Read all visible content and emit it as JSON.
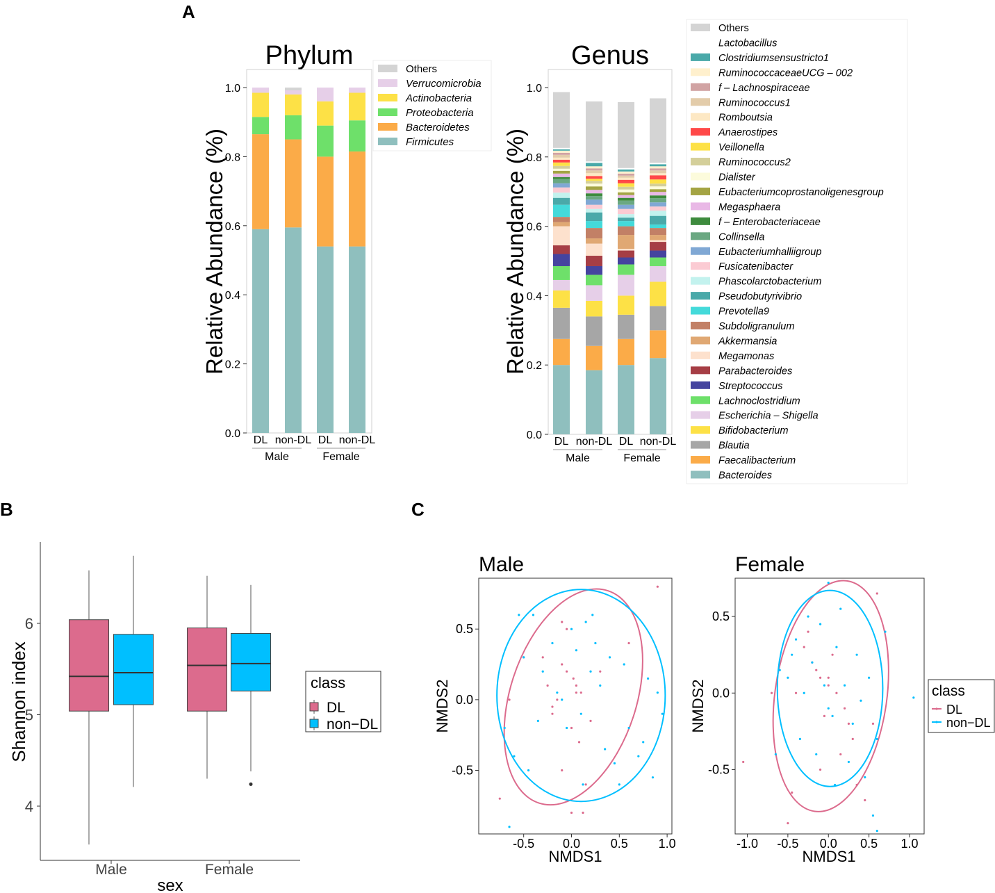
{
  "panel_labels": {
    "a": "A",
    "b": "B",
    "c": "C"
  },
  "colors": {
    "Others": "#d4d4d4",
    "Firmicutes": "#8fbfbe",
    "Bacteroidetes": "#fbab48",
    "Proteobacteria": "#6ee06a",
    "Actinobacteria": "#fde146",
    "Verrucomicrobia": "#e6cfe8",
    "DL": "#dc6b8d",
    "nonDL": "#00bfff"
  },
  "chart_data": [
    {
      "id": "phylum",
      "type": "bar",
      "stacked": true,
      "title": "Phylum",
      "ylabel": "Relative Abundance (%)",
      "ylim": [
        0,
        1.0
      ],
      "yticks": [
        "0.0",
        "0.2",
        "0.4",
        "0.6",
        "0.8",
        "1.0"
      ],
      "categories": [
        "DL",
        "non-DL",
        "DL",
        "non-DL"
      ],
      "groups": [
        "Male",
        "Female"
      ],
      "series": [
        {
          "name": "Firmicutes",
          "values": [
            0.59,
            0.595,
            0.54,
            0.54
          ]
        },
        {
          "name": "Bacteroidetes",
          "values": [
            0.275,
            0.255,
            0.26,
            0.275
          ]
        },
        {
          "name": "Proteobacteria",
          "values": [
            0.05,
            0.07,
            0.09,
            0.09
          ]
        },
        {
          "name": "Actinobacteria",
          "values": [
            0.07,
            0.06,
            0.07,
            0.08
          ]
        },
        {
          "name": "Verrucomicrobia",
          "values": [
            0.015,
            0.012,
            0.04,
            0.015
          ]
        },
        {
          "name": "Others",
          "values": [
            0.0,
            0.008,
            0.0,
            0.0
          ]
        }
      ],
      "legend": [
        "Others",
        "Verrucomicrobia",
        "Actinobacteria",
        "Proteobacteria",
        "Bacteroidetes",
        "Firmicutes"
      ]
    },
    {
      "id": "genus",
      "type": "bar",
      "stacked": true,
      "title": "Genus",
      "ylabel": "Relative Abundance (%)",
      "ylim": [
        0,
        1.0
      ],
      "yticks": [
        "0.0",
        "0.2",
        "0.4",
        "0.6",
        "0.8",
        "1.0"
      ],
      "categories": [
        "DL",
        "non-DL",
        "DL",
        "non-DL"
      ],
      "groups": [
        "Male",
        "Female"
      ],
      "series": [
        {
          "name": "Bacteroides",
          "values": [
            0.2,
            0.185,
            0.2,
            0.22
          ],
          "color": "#8fbfbe"
        },
        {
          "name": "Faecalibacterium",
          "values": [
            0.075,
            0.07,
            0.075,
            0.08
          ],
          "color": "#fbab48"
        },
        {
          "name": "Blautia",
          "values": [
            0.09,
            0.085,
            0.07,
            0.07
          ],
          "color": "#a6a6a6"
        },
        {
          "name": "Bifidobacterium",
          "values": [
            0.05,
            0.045,
            0.055,
            0.07
          ],
          "color": "#fde146"
        },
        {
          "name": "Escherichia – Shigella",
          "values": [
            0.03,
            0.045,
            0.06,
            0.045
          ],
          "color": "#e6cfe8"
        },
        {
          "name": "Lachnoclostridium",
          "values": [
            0.04,
            0.03,
            0.03,
            0.025
          ],
          "color": "#6ee06a"
        },
        {
          "name": "Streptococcus",
          "values": [
            0.035,
            0.025,
            0.02,
            0.02
          ],
          "color": "#45449f"
        },
        {
          "name": "Parabacteroides",
          "values": [
            0.025,
            0.03,
            0.02,
            0.025
          ],
          "color": "#a63e45"
        },
        {
          "name": "Megamonas",
          "values": [
            0.055,
            0.035,
            0.005,
            0.005
          ],
          "color": "#fde1cd"
        },
        {
          "name": "Akkermansia",
          "values": [
            0.012,
            0.015,
            0.04,
            0.015
          ],
          "color": "#e0a873"
        },
        {
          "name": "Subdoligranulum",
          "values": [
            0.015,
            0.03,
            0.025,
            0.02
          ],
          "color": "#c28066"
        },
        {
          "name": "Prevotella9",
          "values": [
            0.035,
            0.02,
            0.015,
            0.01
          ],
          "color": "#44dada"
        },
        {
          "name": "Pseudobutyrivibrio",
          "values": [
            0.02,
            0.025,
            0.01,
            0.025
          ],
          "color": "#4aa9a9"
        },
        {
          "name": "Phascolarctobacterium",
          "values": [
            0.015,
            0.01,
            0.01,
            0.015
          ],
          "color": "#c3f2ee"
        },
        {
          "name": "Fusicatenibacter",
          "values": [
            0.015,
            0.012,
            0.015,
            0.012
          ],
          "color": "#fbcbd3"
        },
        {
          "name": "Eubacteriumhalliigroup",
          "values": [
            0.012,
            0.015,
            0.012,
            0.012
          ],
          "color": "#80a8d4"
        },
        {
          "name": "Collinsella",
          "values": [
            0.012,
            0.01,
            0.012,
            0.012
          ],
          "color": "#6ba882"
        },
        {
          "name": "f – Enterobacteriaceae",
          "values": [
            0.006,
            0.008,
            0.008,
            0.008
          ],
          "color": "#3e8b3e"
        },
        {
          "name": "Megasphaera",
          "values": [
            0.01,
            0.01,
            0.008,
            0.01
          ],
          "color": "#e9b8e6"
        },
        {
          "name": "Eubacteriumcoprostanoligenesgroup",
          "values": [
            0.008,
            0.01,
            0.008,
            0.008
          ],
          "color": "#a4a444"
        },
        {
          "name": "Dialister",
          "values": [
            0.006,
            0.008,
            0.008,
            0.008
          ],
          "color": "#fcfbdc"
        },
        {
          "name": "Ruminococcus2",
          "values": [
            0.008,
            0.008,
            0.008,
            0.008
          ],
          "color": "#d4cf9a"
        },
        {
          "name": "Veillonella",
          "values": [
            0.01,
            0.006,
            0.01,
            0.012
          ],
          "color": "#fde146"
        },
        {
          "name": "Anaerostipes",
          "values": [
            0.008,
            0.008,
            0.01,
            0.012
          ],
          "color": "#ff4848"
        },
        {
          "name": "Romboutsia",
          "values": [
            0.006,
            0.008,
            0.006,
            0.006
          ],
          "color": "#fde8c4"
        },
        {
          "name": "Ruminococcus1",
          "values": [
            0.008,
            0.008,
            0.006,
            0.008
          ],
          "color": "#e3ccaa"
        },
        {
          "name": "f – Lachnospiraceae",
          "values": [
            0.006,
            0.006,
            0.006,
            0.006
          ],
          "color": "#d1a3a3"
        },
        {
          "name": "RuminococcaceaeUCG – 002",
          "values": [
            0.006,
            0.006,
            0.006,
            0.006
          ],
          "color": "#fff0cd"
        },
        {
          "name": "Clostridiumsensustricto1",
          "values": [
            0.004,
            0.01,
            0.006,
            0.006
          ],
          "color": "#4aa9a9"
        },
        {
          "name": "Lactobacillus",
          "values": [
            0.004,
            0.004,
            0.004,
            0.004
          ],
          "color": "#ffffff"
        },
        {
          "name": "Others",
          "values": [
            0.161,
            0.173,
            0.19,
            0.186
          ],
          "color": "#d4d4d4"
        }
      ],
      "legend": [
        "Others",
        "Lactobacillus",
        "Clostridiumsensustricto1",
        "RuminococcaceaeUCG – 002",
        "f – Lachnospiraceae",
        "Ruminococcus1",
        "Romboutsia",
        "Anaerostipes",
        "Veillonella",
        "Ruminococcus2",
        "Dialister",
        "Eubacteriumcoprostanoligenesgroup",
        "Megasphaera",
        "f – Enterobacteriaceae",
        "Collinsella",
        "Eubacteriumhalliigroup",
        "Fusicatenibacter",
        "Phascolarctobacterium",
        "Pseudobutyrivibrio",
        "Prevotella9",
        "Subdoligranulum",
        "Akkermansia",
        "Megamonas",
        "Parabacteroides",
        "Streptococcus",
        "Lachnoclostridium",
        "Escherichia – Shigella",
        "Bifidobacterium",
        "Blautia",
        "Faecalibacterium",
        "Bacteroides"
      ]
    },
    {
      "id": "shannon",
      "type": "box",
      "xlabel": "sex",
      "ylabel": "Shannon index",
      "ylim": [
        3.5,
        6.85
      ],
      "yticks": [
        "4",
        "5",
        "6"
      ],
      "categories": [
        "Male",
        "Female"
      ],
      "legend_title": "class",
      "legend": [
        "DL",
        "non−DL"
      ],
      "boxes": [
        {
          "group": "Male",
          "class": "DL",
          "min": 3.58,
          "q1": 5.04,
          "median": 5.42,
          "q3": 6.04,
          "max": 6.58,
          "outliers": []
        },
        {
          "group": "Male",
          "class": "non−DL",
          "min": 4.21,
          "q1": 5.11,
          "median": 5.46,
          "q3": 5.88,
          "max": 6.74,
          "outliers": []
        },
        {
          "group": "Female",
          "class": "DL",
          "min": 4.3,
          "q1": 5.04,
          "median": 5.54,
          "q3": 5.95,
          "max": 6.52,
          "outliers": []
        },
        {
          "group": "Female",
          "class": "non−DL",
          "min": 4.38,
          "q1": 5.26,
          "median": 5.56,
          "q3": 5.89,
          "max": 6.42,
          "outliers": [
            4.24
          ]
        }
      ]
    },
    {
      "id": "nmds_male",
      "type": "scatter",
      "title": "Male",
      "xlabel": "NMDS1",
      "ylabel": "NMDS2",
      "xlim": [
        -0.97,
        1.05
      ],
      "ylim": [
        -0.95,
        0.86
      ],
      "xticks": [
        "-0.5",
        "0.0",
        "0.5",
        "1.0"
      ],
      "yticks": [
        "-0.5",
        "0.0",
        "0.5"
      ],
      "ellipses": [
        {
          "class": "DL",
          "cx": 0.02,
          "cy": 0.02,
          "rx": 0.66,
          "ry": 0.79,
          "angle": 18
        },
        {
          "class": "nonDL",
          "cx": 0.1,
          "cy": 0.03,
          "rx": 0.88,
          "ry": 0.75,
          "angle": 0
        }
      ],
      "series": [
        {
          "name": "DL",
          "x": [
            -0.3,
            -0.1,
            -0.05,
            0.02,
            0.05,
            0.1,
            -0.15,
            -0.2,
            0.0,
            0.08,
            -0.25,
            0.3,
            0.15,
            -0.1,
            0.12,
            -0.05,
            0.6,
            0.9,
            -0.75,
            -0.65,
            -0.5,
            -0.2,
            0.05,
            0.2,
            -0.1,
            0.0
          ],
          "y": [
            0.3,
            0.25,
            0.2,
            0.15,
            0.1,
            0.05,
            0.0,
            -0.1,
            -0.2,
            -0.3,
            0.1,
            0.2,
            -0.6,
            -0.5,
            -0.8,
            0.5,
            0.4,
            0.8,
            -0.7,
            0.0,
            0.3,
            -0.05,
            0.05,
            -0.15,
            0.55,
            -0.8
          ]
        },
        {
          "name": "nonDL",
          "x": [
            -0.7,
            -0.6,
            -0.5,
            -0.4,
            -0.3,
            -0.2,
            -0.1,
            0.0,
            0.1,
            0.2,
            0.3,
            0.4,
            0.5,
            0.6,
            0.7,
            0.8,
            0.9,
            0.95,
            -0.65,
            -0.45,
            0.15,
            0.25,
            0.35,
            -0.05,
            0.05,
            0.12,
            -0.15,
            0.45,
            0.55,
            0.75,
            -0.35,
            0.22,
            -0.55,
            0.85
          ],
          "y": [
            -0.2,
            -0.4,
            0.3,
            0.6,
            0.2,
            0.4,
            0.0,
            0.5,
            -0.1,
            0.2,
            0.1,
            0.3,
            -0.6,
            -0.2,
            -0.4,
            0.15,
            0.05,
            -0.1,
            -0.9,
            -0.5,
            0.55,
            0.4,
            -0.35,
            -0.2,
            0.35,
            -0.6,
            0.05,
            -0.45,
            0.25,
            -0.3,
            -0.15,
            0.6,
            0.6,
            -0.55
          ]
        }
      ],
      "legend_title": "class",
      "legend": [
        "DL",
        "non−DL"
      ]
    },
    {
      "id": "nmds_female",
      "type": "scatter",
      "title": "Female",
      "xlabel": "NMDS1",
      "ylabel": "NMDS2",
      "xlim": [
        -1.15,
        1.18
      ],
      "ylim": [
        -0.92,
        0.75
      ],
      "xticks": [
        "-1.0",
        "-0.5",
        "0.0",
        "0.5",
        "1.0"
      ],
      "yticks": [
        "-0.5",
        "0.0",
        "0.5"
      ],
      "ellipses": [
        {
          "class": "DL",
          "cx": 0.03,
          "cy": -0.02,
          "rx": 0.69,
          "ry": 0.76,
          "angle": 8
        },
        {
          "class": "nonDL",
          "cx": 0.02,
          "cy": 0.03,
          "rx": 0.65,
          "ry": 0.64,
          "angle": 0
        }
      ],
      "series": [
        {
          "name": "DL",
          "x": [
            -0.3,
            -0.2,
            -0.1,
            0.0,
            0.1,
            0.2,
            -0.15,
            0.05,
            0.25,
            -0.4,
            0.3,
            -0.05,
            0.15,
            -0.25,
            0.6,
            -1.05,
            -0.7,
            -0.45,
            -0.5,
            0.55,
            0.45,
            -0.1,
            0.35,
            0.0
          ],
          "y": [
            0.3,
            0.2,
            0.1,
            0.05,
            0.0,
            -0.1,
            0.15,
            0.25,
            -0.2,
            0.0,
            -0.3,
            -0.15,
            -0.4,
            0.4,
            0.65,
            -0.45,
            0.0,
            -0.65,
            -0.85,
            -0.2,
            -0.7,
            -0.5,
            -0.6,
            0.1
          ]
        },
        {
          "name": "nonDL",
          "x": [
            -0.5,
            -0.4,
            -0.3,
            -0.2,
            -0.1,
            0.0,
            0.1,
            0.2,
            0.3,
            0.4,
            0.5,
            0.6,
            0.7,
            -0.6,
            -0.35,
            0.15,
            0.25,
            -0.05,
            0.05,
            -0.15,
            0.35,
            0.45,
            1.05,
            -0.65,
            -0.25,
            0.0,
            0.55,
            0.6,
            0.08,
            -0.45
          ],
          "y": [
            0.1,
            0.35,
            0.0,
            0.2,
            0.45,
            -0.1,
            0.3,
            0.05,
            -0.2,
            -0.05,
            0.1,
            -0.3,
            0.4,
            0.15,
            -0.3,
            0.55,
            -0.45,
            0.05,
            -0.15,
            -0.4,
            0.25,
            -0.55,
            -0.03,
            -0.4,
            0.5,
            0.72,
            -0.8,
            -0.9,
            -0.6,
            0.25
          ]
        }
      ],
      "legend_title": "class",
      "legend": [
        "DL",
        "non−DL"
      ]
    }
  ]
}
